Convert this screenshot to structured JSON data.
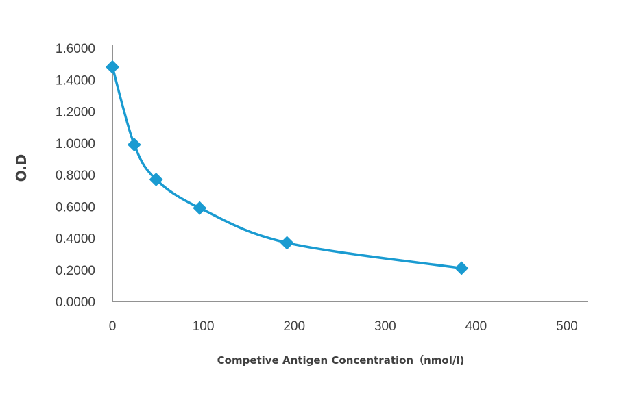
{
  "chart_data": {
    "type": "line",
    "title": "",
    "xlabel": "Competive Antigen Concentration（nmol/l)",
    "ylabel": "O.D",
    "xlim": [
      0,
      500
    ],
    "ylim": [
      0,
      1.6
    ],
    "x_ticks": [
      "0",
      "100",
      "200",
      "300",
      "400",
      "500"
    ],
    "y_ticks": [
      "0.0000",
      "0.2000",
      "0.4000",
      "0.6000",
      "0.8000",
      "1.0000",
      "1.2000",
      "1.4000",
      "1.6000"
    ],
    "grid": false,
    "legend": "none",
    "smooth": true,
    "series": [
      {
        "color": "#1A9BD1",
        "marker": "diamond",
        "x": [
          0,
          24,
          48,
          96,
          192,
          384
        ],
        "y": [
          1.48,
          0.99,
          0.77,
          0.59,
          0.37,
          0.21
        ]
      }
    ]
  }
}
